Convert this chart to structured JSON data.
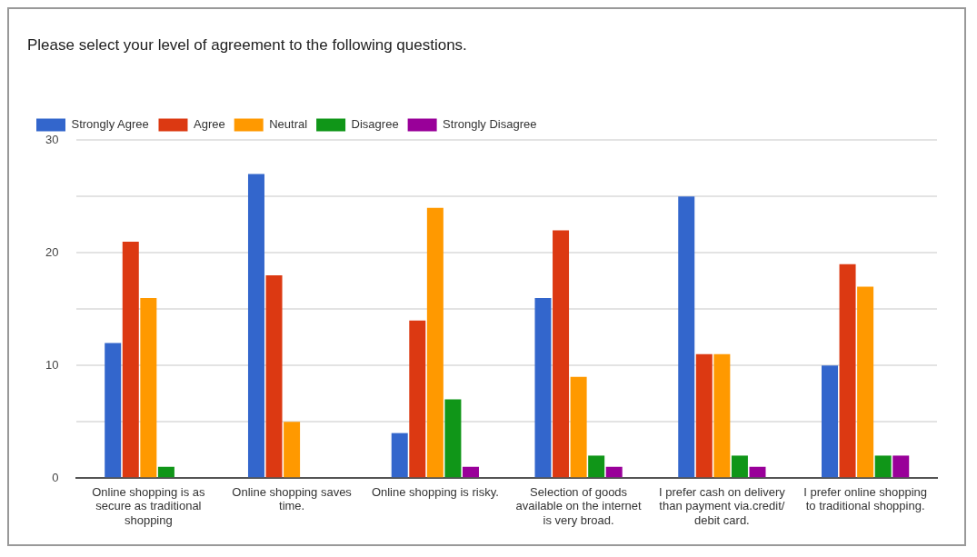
{
  "chart_data": {
    "type": "bar",
    "title": "Please select your level of agreement to the following questions.",
    "categories": [
      "Online shopping is as secure as traditional shopping",
      "Online shopping saves time.",
      "Online shopping is risky.",
      "Selection of goods available on the internet is very broad.",
      "I prefer cash on delivery than payment via.credit/ debit card.",
      "I prefer online shopping to traditional shopping."
    ],
    "series": [
      {
        "name": "Strongly Agree",
        "color": "#3366cc",
        "values": [
          12,
          27,
          4,
          16,
          25,
          10
        ]
      },
      {
        "name": "Agree",
        "color": "#dc3912",
        "values": [
          21,
          18,
          14,
          22,
          11,
          19
        ]
      },
      {
        "name": "Neutral",
        "color": "#ff9900",
        "values": [
          16,
          5,
          24,
          9,
          11,
          17
        ]
      },
      {
        "name": "Disagree",
        "color": "#109618",
        "values": [
          1,
          0,
          7,
          2,
          2,
          2
        ]
      },
      {
        "name": "Strongly Disagree",
        "color": "#990099",
        "values": [
          0,
          0,
          1,
          1,
          1,
          2
        ]
      }
    ],
    "ylim": [
      0,
      30
    ],
    "yticks": [
      0,
      {
        "value": 5,
        "label": null
      },
      10,
      {
        "value": 15,
        "label": null
      },
      20,
      {
        "value": 25,
        "label": null
      },
      30
    ],
    "grid": "y",
    "legend": "top left"
  }
}
